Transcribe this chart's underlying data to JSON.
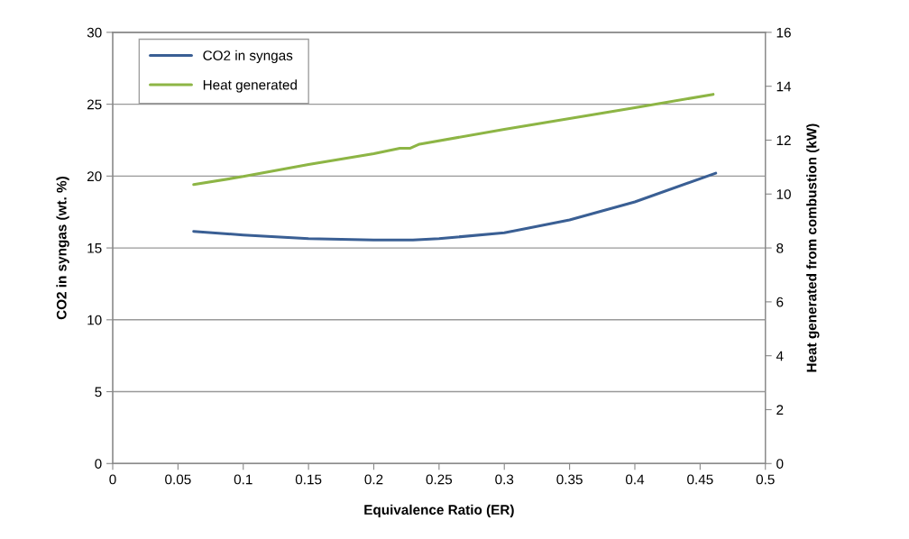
{
  "chart_data": {
    "type": "line",
    "xlabel": "Equivalence Ratio (ER)",
    "ylabel": "CO2 in syngas (wt. %)",
    "y2label": "Heat generated from combustion (kW)",
    "xlim": [
      0,
      0.5
    ],
    "xticks": [
      0,
      0.05,
      0.1,
      0.15,
      0.2,
      0.25,
      0.3,
      0.35,
      0.4,
      0.45,
      0.5
    ],
    "ylim": [
      0,
      30
    ],
    "yticks": [
      0,
      5,
      10,
      15,
      20,
      25,
      30
    ],
    "y2lim": [
      0,
      16
    ],
    "y2ticks": [
      0,
      2,
      4,
      6,
      8,
      10,
      12,
      14,
      16
    ],
    "grid": "y",
    "legend": "top left",
    "marker": "none",
    "line_style": "solid",
    "series": [
      {
        "name": "CO2 in syngas",
        "color": "#3a5f94",
        "x": [
          0.062,
          0.1,
          0.15,
          0.2,
          0.23,
          0.25,
          0.3,
          0.35,
          0.4,
          0.462
        ],
        "values": [
          16.15,
          15.9,
          15.65,
          15.55,
          15.55,
          15.65,
          16.05,
          16.95,
          18.2,
          20.2
        ]
      },
      {
        "name": "Heat generated",
        "color": "#8db545",
        "axis": "y2",
        "x": [
          0.062,
          0.1,
          0.15,
          0.2,
          0.22,
          0.228,
          0.235,
          0.3,
          0.4,
          0.46
        ],
        "values": [
          10.35,
          10.65,
          11.1,
          11.5,
          11.7,
          11.7,
          11.85,
          12.4,
          13.2,
          13.7
        ]
      }
    ]
  }
}
